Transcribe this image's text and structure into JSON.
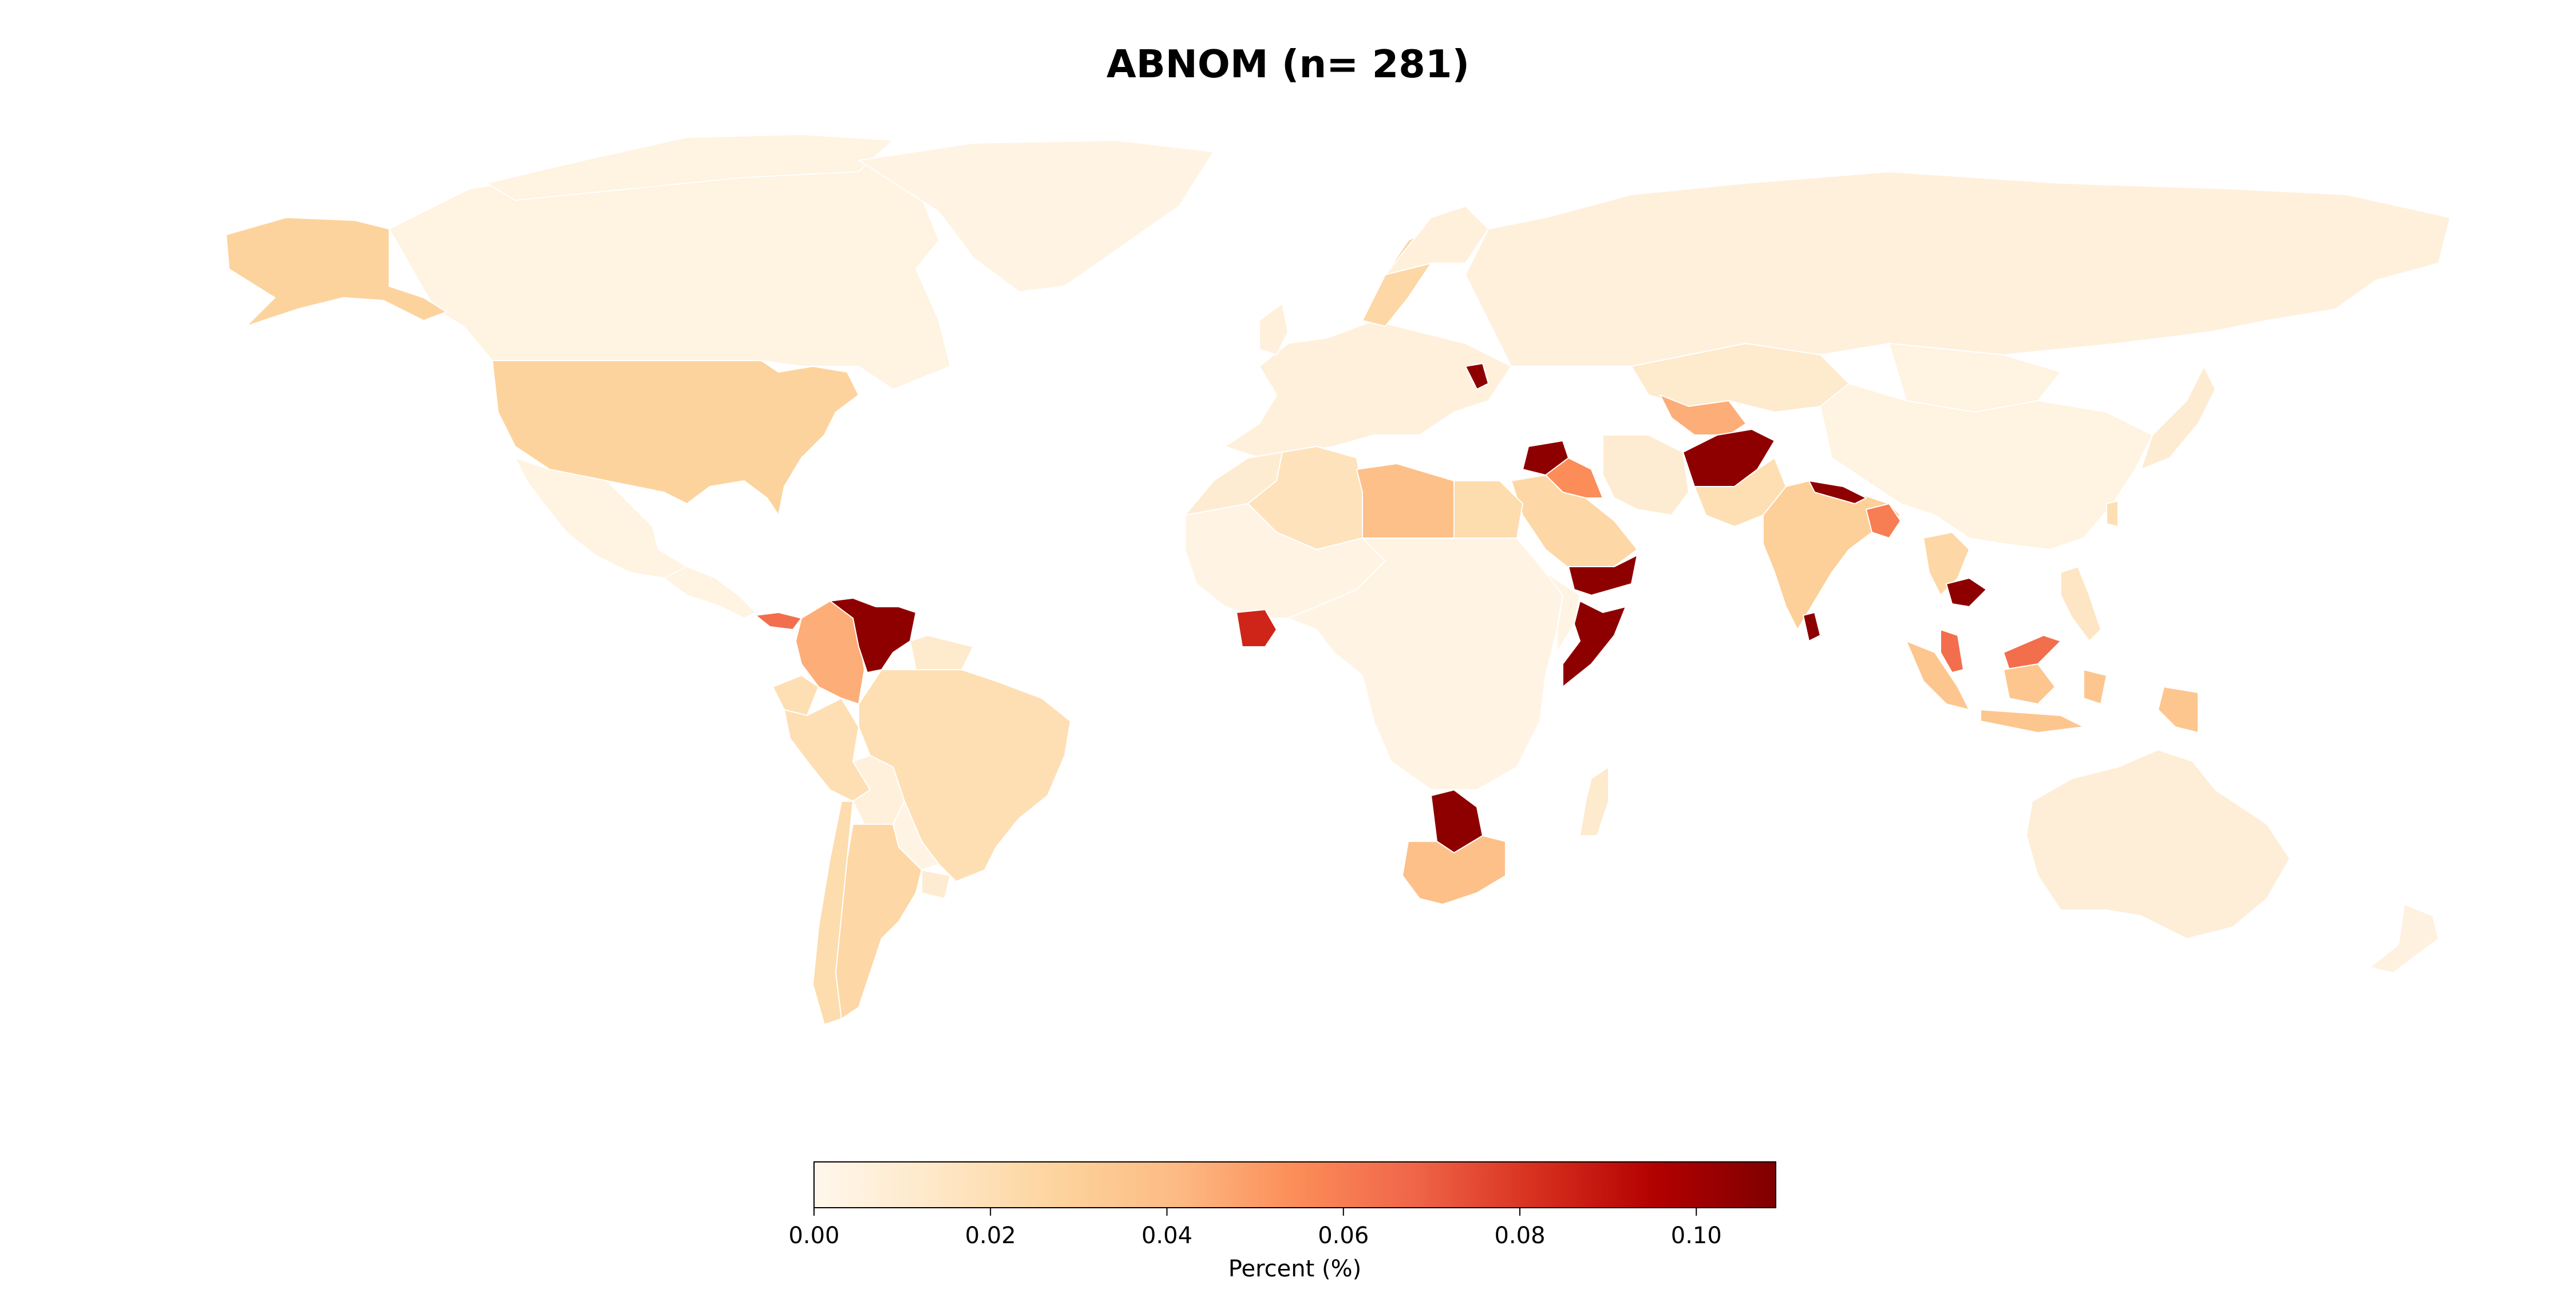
{
  "title": "ABNOM (n= 281)",
  "colorbar": {
    "label": "Percent (%)",
    "ticks": [
      "0.00",
      "0.02",
      "0.04",
      "0.06",
      "0.08",
      "0.10"
    ],
    "range": [
      0,
      0.109
    ],
    "colormap": "OrRd",
    "stops": [
      "#fff7ec",
      "#fee8c8",
      "#fdd49e",
      "#fdbb84",
      "#fc8d59",
      "#ef6548",
      "#d7301f",
      "#b30000",
      "#7f0000"
    ]
  },
  "chart_data": {
    "type": "choropleth",
    "title": "ABNOM (n= 281)",
    "value_label": "Percent (%)",
    "vmin": 0,
    "vmax": 0.109,
    "regions": [
      {
        "name": "Canada",
        "value": 0.004
      },
      {
        "name": "United States",
        "value": 0.028
      },
      {
        "name": "Alaska",
        "value": 0.028
      },
      {
        "name": "Greenland",
        "value": 0.003
      },
      {
        "name": "Mexico",
        "value": 0.004
      },
      {
        "name": "Central America",
        "value": 0.004
      },
      {
        "name": "Panama",
        "value": 0.065
      },
      {
        "name": "Colombia",
        "value": 0.045
      },
      {
        "name": "Venezuela",
        "value": 0.105
      },
      {
        "name": "Guyana",
        "value": 0.012
      },
      {
        "name": "Ecuador",
        "value": 0.02
      },
      {
        "name": "Peru",
        "value": 0.02
      },
      {
        "name": "Brazil",
        "value": 0.02
      },
      {
        "name": "Bolivia",
        "value": 0.006
      },
      {
        "name": "Paraguay",
        "value": 0.003
      },
      {
        "name": "Chile",
        "value": 0.022
      },
      {
        "name": "Argentina",
        "value": 0.025
      },
      {
        "name": "Uruguay",
        "value": 0.01
      },
      {
        "name": "Morocco",
        "value": 0.01
      },
      {
        "name": "Algeria",
        "value": 0.018
      },
      {
        "name": "Libya",
        "value": 0.038
      },
      {
        "name": "Egypt",
        "value": 0.022
      },
      {
        "name": "West Africa",
        "value": 0.003
      },
      {
        "name": "Ivory Coast",
        "value": 0.085
      },
      {
        "name": "Central Africa",
        "value": 0.003
      },
      {
        "name": "East Africa",
        "value": 0.003
      },
      {
        "name": "Somalia",
        "value": 0.105
      },
      {
        "name": "Botswana",
        "value": 0.105
      },
      {
        "name": "South Africa",
        "value": 0.038
      },
      {
        "name": "Madagascar",
        "value": 0.012
      },
      {
        "name": "Europe",
        "value": 0.006
      },
      {
        "name": "Sweden",
        "value": 0.025
      },
      {
        "name": "Moldova",
        "value": 0.105
      },
      {
        "name": "Russia",
        "value": 0.006
      },
      {
        "name": "Kazakhstan",
        "value": 0.012
      },
      {
        "name": "Uzbekistan",
        "value": 0.045
      },
      {
        "name": "Syria",
        "value": 0.105
      },
      {
        "name": "Iraq",
        "value": 0.055
      },
      {
        "name": "Saudi Arabia",
        "value": 0.025
      },
      {
        "name": "Yemen",
        "value": 0.105
      },
      {
        "name": "Iran",
        "value": 0.01
      },
      {
        "name": "Afghanistan",
        "value": 0.105
      },
      {
        "name": "Pakistan",
        "value": 0.02
      },
      {
        "name": "India",
        "value": 0.03
      },
      {
        "name": "Nepal",
        "value": 0.105
      },
      {
        "name": "Bangladesh",
        "value": 0.06
      },
      {
        "name": "Sri Lanka",
        "value": 0.105
      },
      {
        "name": "China",
        "value": 0.004
      },
      {
        "name": "Mongolia",
        "value": 0.004
      },
      {
        "name": "Japan",
        "value": 0.01
      },
      {
        "name": "Taiwan",
        "value": 0.02
      },
      {
        "name": "Thailand",
        "value": 0.025
      },
      {
        "name": "Cambodia",
        "value": 0.105
      },
      {
        "name": "Malaysia",
        "value": 0.065
      },
      {
        "name": "Philippines",
        "value": 0.015
      },
      {
        "name": "Indonesia",
        "value": 0.035
      },
      {
        "name": "Papua New Guinea",
        "value": 0.035
      },
      {
        "name": "Australia",
        "value": 0.008
      },
      {
        "name": "New Zealand",
        "value": 0.005
      }
    ]
  }
}
